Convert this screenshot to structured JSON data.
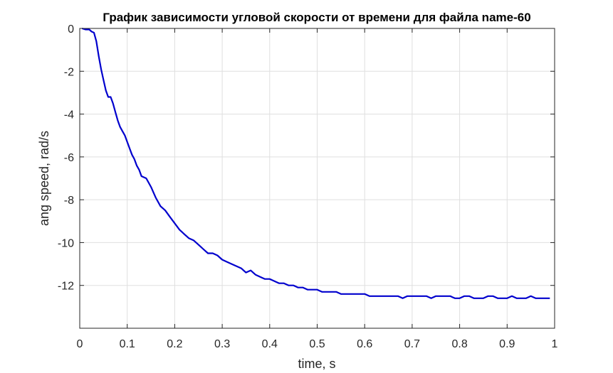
{
  "chart_data": {
    "type": "line",
    "title": "График зависимости угловой скорости от времени для файла name-60",
    "xlabel": "time, s",
    "ylabel": "ang speed, rad/s",
    "xlim": [
      0,
      1
    ],
    "ylim": [
      -14,
      0
    ],
    "xticks": [
      0,
      0.1,
      0.2,
      0.3,
      0.4,
      0.5,
      0.6,
      0.7,
      0.8,
      0.9,
      1
    ],
    "xtick_labels": [
      "0",
      "0.1",
      "0.2",
      "0.3",
      "0.4",
      "0.5",
      "0.6",
      "0.7",
      "0.8",
      "0.9",
      "1"
    ],
    "yticks": [
      0,
      -2,
      -4,
      -6,
      -8,
      -10,
      -12
    ],
    "ytick_labels": [
      "0",
      "-2",
      "-4",
      "-6",
      "-8",
      "-10",
      "-12"
    ],
    "grid": true,
    "series": [
      {
        "color": "#0000cd",
        "x": [
          0.005,
          0.012,
          0.02,
          0.025,
          0.03,
          0.035,
          0.04,
          0.045,
          0.05,
          0.055,
          0.06,
          0.065,
          0.07,
          0.075,
          0.08,
          0.085,
          0.09,
          0.095,
          0.1,
          0.105,
          0.11,
          0.115,
          0.12,
          0.125,
          0.13,
          0.14,
          0.15,
          0.16,
          0.17,
          0.18,
          0.19,
          0.2,
          0.21,
          0.22,
          0.23,
          0.24,
          0.25,
          0.26,
          0.27,
          0.28,
          0.29,
          0.3,
          0.31,
          0.32,
          0.33,
          0.34,
          0.35,
          0.36,
          0.37,
          0.38,
          0.39,
          0.4,
          0.41,
          0.42,
          0.43,
          0.44,
          0.45,
          0.46,
          0.47,
          0.48,
          0.49,
          0.5,
          0.51,
          0.52,
          0.53,
          0.54,
          0.55,
          0.56,
          0.57,
          0.58,
          0.59,
          0.6,
          0.61,
          0.62,
          0.63,
          0.64,
          0.65,
          0.66,
          0.67,
          0.68,
          0.69,
          0.7,
          0.71,
          0.72,
          0.73,
          0.74,
          0.75,
          0.76,
          0.77,
          0.78,
          0.79,
          0.8,
          0.81,
          0.82,
          0.83,
          0.84,
          0.85,
          0.86,
          0.87,
          0.88,
          0.89,
          0.9,
          0.91,
          0.92,
          0.93,
          0.94,
          0.95,
          0.96,
          0.97,
          0.98,
          0.99
        ],
        "y": [
          0,
          -0.05,
          -0.05,
          -0.15,
          -0.2,
          -0.6,
          -1.3,
          -1.9,
          -2.4,
          -2.9,
          -3.2,
          -3.2,
          -3.5,
          -3.9,
          -4.3,
          -4.6,
          -4.8,
          -5.0,
          -5.3,
          -5.6,
          -5.9,
          -6.1,
          -6.4,
          -6.6,
          -6.9,
          -7.0,
          -7.4,
          -7.9,
          -8.3,
          -8.5,
          -8.8,
          -9.1,
          -9.4,
          -9.6,
          -9.8,
          -9.9,
          -10.1,
          -10.3,
          -10.5,
          -10.5,
          -10.6,
          -10.8,
          -10.9,
          -11.0,
          -11.1,
          -11.2,
          -11.4,
          -11.3,
          -11.5,
          -11.6,
          -11.7,
          -11.7,
          -11.8,
          -11.9,
          -11.9,
          -12.0,
          -12.0,
          -12.1,
          -12.1,
          -12.2,
          -12.2,
          -12.2,
          -12.3,
          -12.3,
          -12.3,
          -12.3,
          -12.4,
          -12.4,
          -12.4,
          -12.4,
          -12.4,
          -12.4,
          -12.5,
          -12.5,
          -12.5,
          -12.5,
          -12.5,
          -12.5,
          -12.5,
          -12.6,
          -12.5,
          -12.5,
          -12.5,
          -12.5,
          -12.5,
          -12.6,
          -12.5,
          -12.5,
          -12.5,
          -12.5,
          -12.6,
          -12.6,
          -12.5,
          -12.5,
          -12.6,
          -12.6,
          -12.6,
          -12.5,
          -12.5,
          -12.6,
          -12.6,
          -12.6,
          -12.5,
          -12.6,
          -12.6,
          -12.6,
          -12.5,
          -12.6,
          -12.6,
          -12.6,
          -12.6
        ]
      }
    ]
  }
}
